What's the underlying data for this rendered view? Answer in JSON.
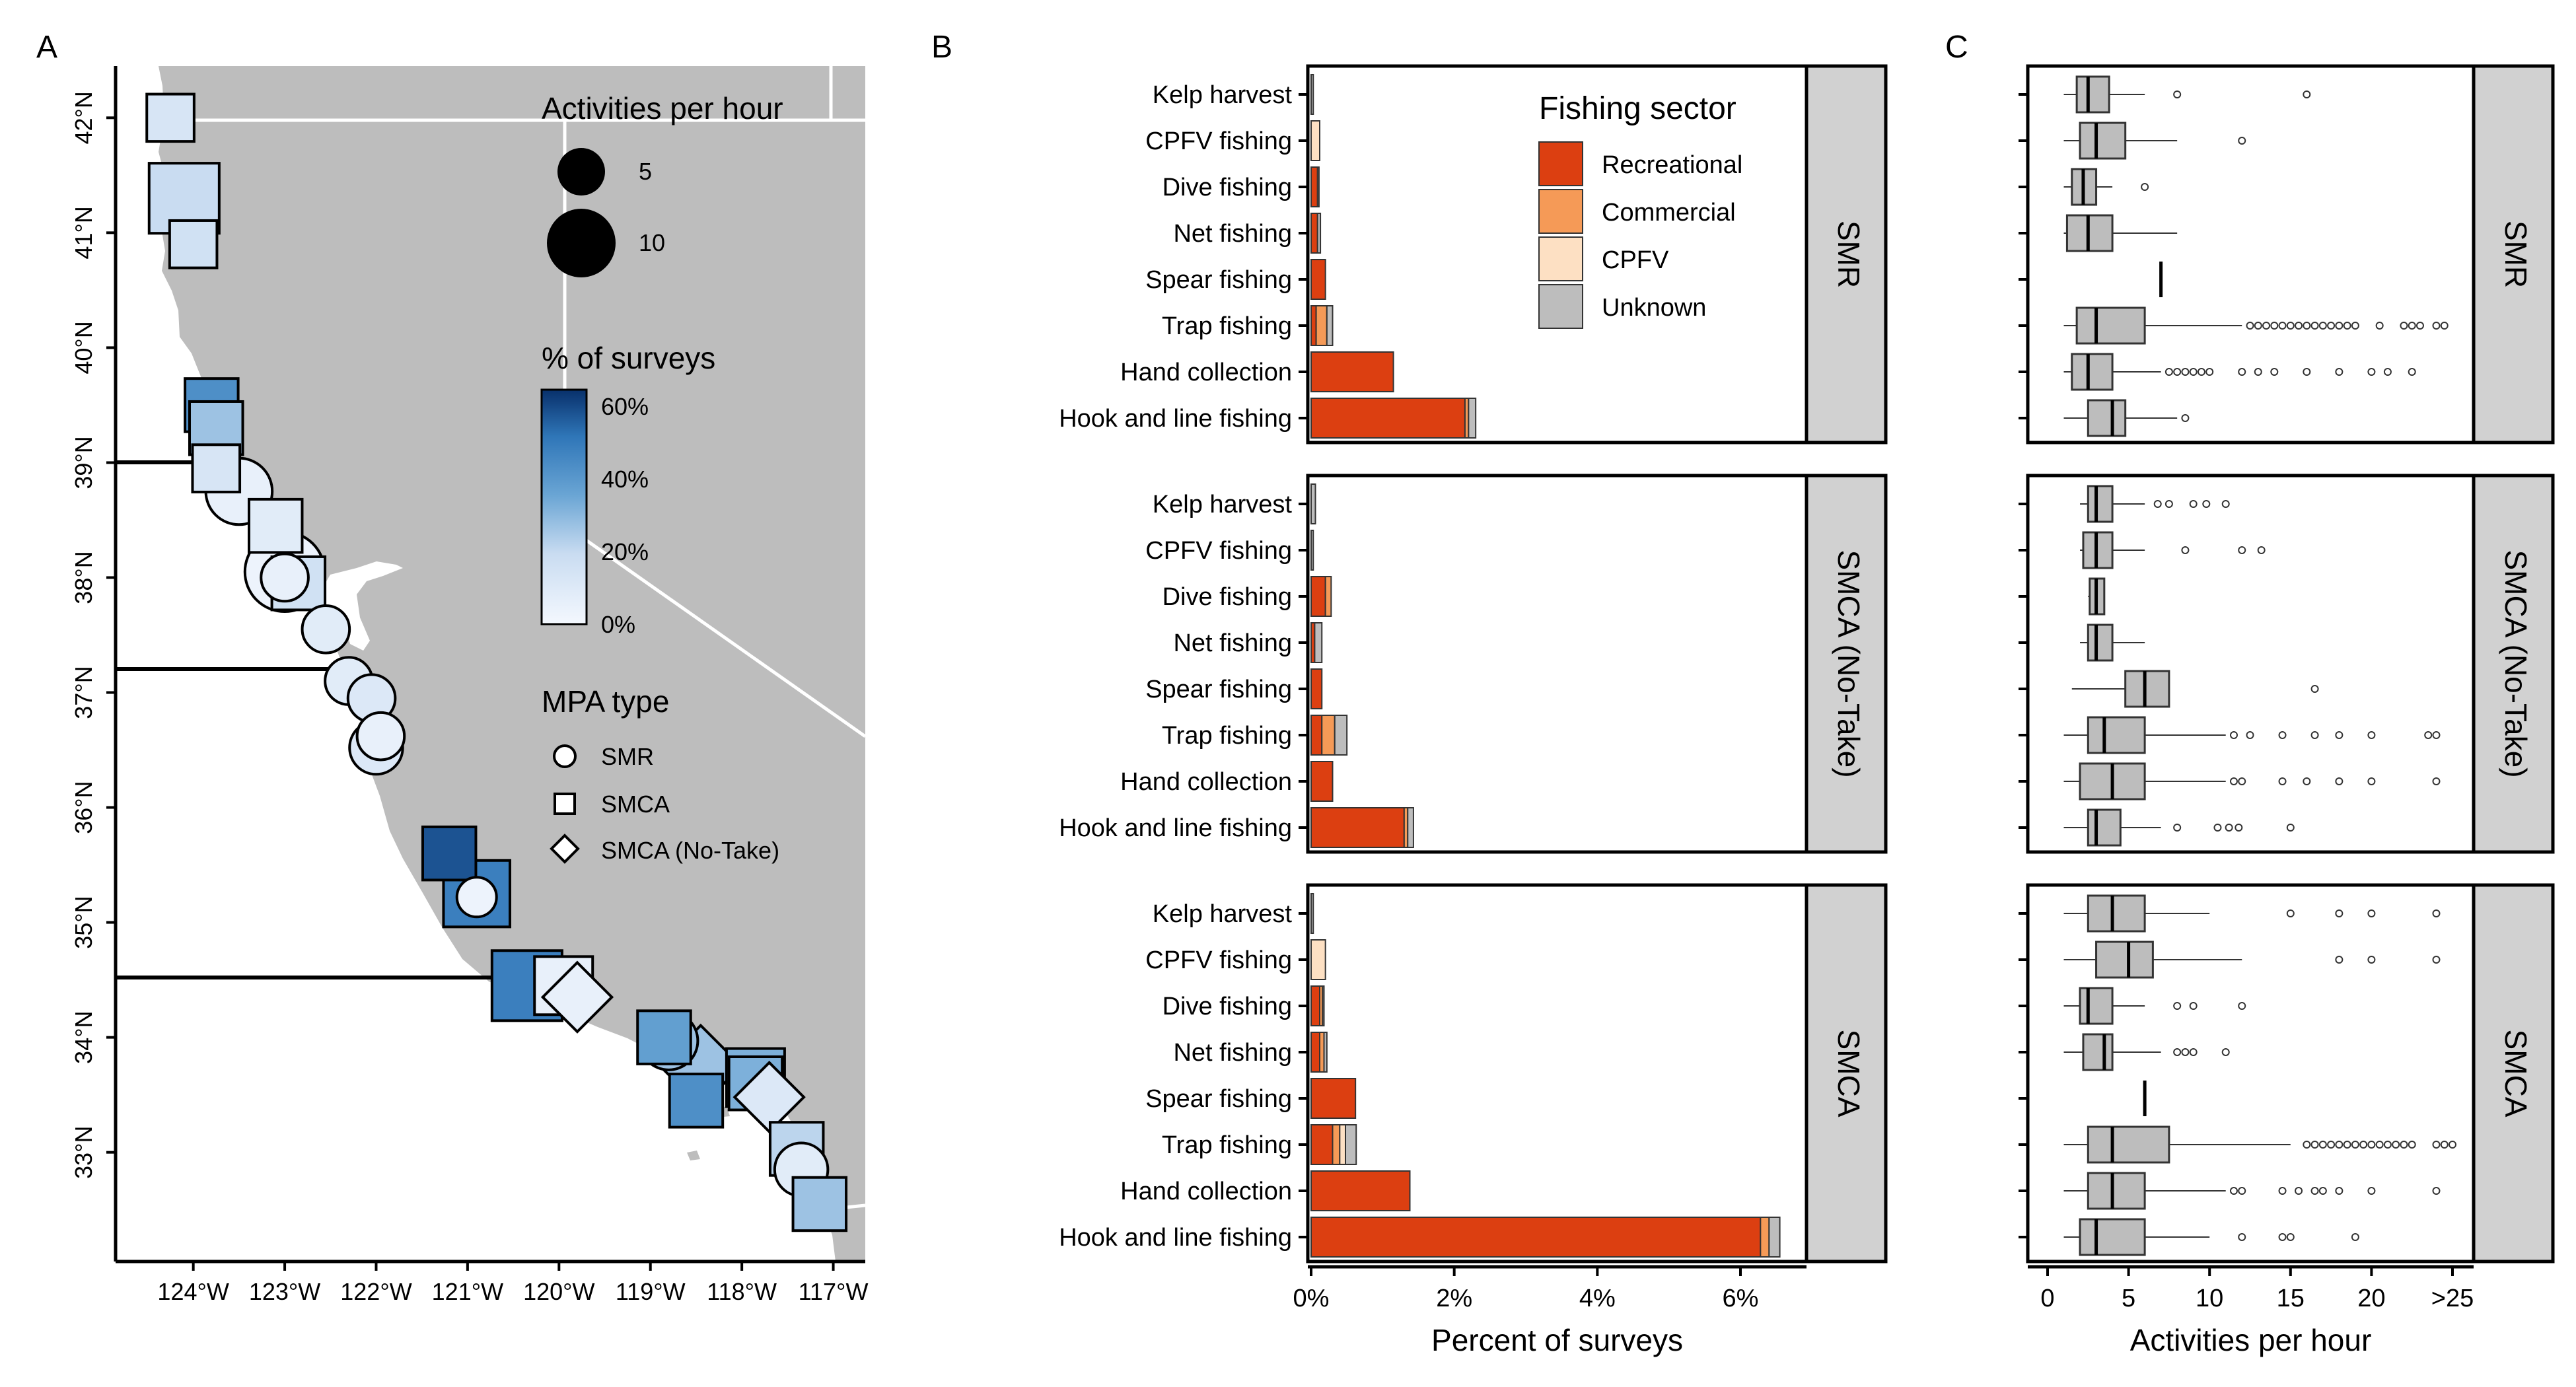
{
  "panel_letters": [
    "A",
    "B",
    "C"
  ],
  "colors": {
    "land": "#bdbdbd",
    "strip": "#d1d1d1",
    "recreational": "#dc3f11",
    "commercial": "#f59a57",
    "cpfv": "#fde0c3",
    "unknown": "#bdbdbd",
    "pct_scale": [
      "#f4f8fe",
      "#c9dcf1",
      "#6aa5d4",
      "#2f76b8",
      "#08306b"
    ]
  },
  "map": {
    "x_ticks": [
      "124°W",
      "123°W",
      "122°W",
      "121°W",
      "120°W",
      "119°W",
      "118°W",
      "117°W"
    ],
    "y_ticks": [
      "33°N",
      "34°N",
      "35°N",
      "36°N",
      "37°N",
      "38°N",
      "39°N",
      "40°N",
      "41°N",
      "42°N"
    ],
    "legend_size_title": "Activities per hour",
    "legend_size_labels": [
      "5",
      "10"
    ],
    "legend_color_title": "% of surveys",
    "legend_color_labels": [
      "60%",
      "40%",
      "20%",
      "0%"
    ],
    "legend_shape_title": "MPA type",
    "legend_shape_labels": [
      "SMR",
      "SMCA",
      "SMCA (No-Take)"
    ],
    "sites": [
      {
        "type": "SMCA",
        "lon": -124.25,
        "lat": 42.0,
        "act": 2,
        "pct": 12
      },
      {
        "type": "SMCA",
        "lon": -124.1,
        "lat": 41.3,
        "act": 7,
        "pct": 18
      },
      {
        "type": "SMCA",
        "lon": -124.0,
        "lat": 40.9,
        "act": 2,
        "pct": 15
      },
      {
        "type": "SMCA",
        "lon": -123.8,
        "lat": 39.5,
        "act": 3,
        "pct": 40
      },
      {
        "type": "SMCA",
        "lon": -123.75,
        "lat": 39.3,
        "act": 3,
        "pct": 25
      },
      {
        "type": "SMCA",
        "lon": -123.75,
        "lat": 38.95,
        "act": 2,
        "pct": 12
      },
      {
        "type": "SMR",
        "lon": -123.5,
        "lat": 38.75,
        "act": 6,
        "pct": 5
      },
      {
        "type": "SMCA",
        "lon": -123.1,
        "lat": 38.45,
        "act": 3,
        "pct": 8
      },
      {
        "type": "SMCA",
        "lon": -122.85,
        "lat": 37.95,
        "act": 3,
        "pct": 15
      },
      {
        "type": "SMR",
        "lon": -123.0,
        "lat": 38.05,
        "act": 10,
        "pct": 3
      },
      {
        "type": "SMR",
        "lon": -123.0,
        "lat": 38.0,
        "act": 2,
        "pct": 5
      },
      {
        "type": "SMR",
        "lon": -122.55,
        "lat": 37.55,
        "act": 2,
        "pct": 8
      },
      {
        "type": "SMR",
        "lon": -122.3,
        "lat": 37.1,
        "act": 2,
        "pct": 8
      },
      {
        "type": "SMR",
        "lon": -122.05,
        "lat": 36.95,
        "act": 2,
        "pct": 10
      },
      {
        "type": "SMR",
        "lon": -121.95,
        "lat": 36.62,
        "act": 2,
        "pct": 5
      },
      {
        "type": "SMR",
        "lon": -122.0,
        "lat": 36.52,
        "act": 3,
        "pct": 10
      },
      {
        "type": "SMCA",
        "lon": -121.2,
        "lat": 35.6,
        "act": 3,
        "pct": 55
      },
      {
        "type": "SMCA",
        "lon": -120.9,
        "lat": 35.25,
        "act": 6,
        "pct": 45
      },
      {
        "type": "SMR",
        "lon": -120.9,
        "lat": 35.22,
        "act": 1,
        "pct": 3
      },
      {
        "type": "SMCA",
        "lon": -120.35,
        "lat": 34.45,
        "act": 7,
        "pct": 45
      },
      {
        "type": "SMCA (No-Take)",
        "lon": -119.8,
        "lat": 34.35,
        "act": 3,
        "pct": 5
      },
      {
        "type": "SMCA",
        "lon": -119.95,
        "lat": 34.45,
        "act": 4,
        "pct": 5
      },
      {
        "type": "SMCA",
        "lon": -118.85,
        "lat": 34.0,
        "act": 3,
        "pct": 35
      },
      {
        "type": "SMR",
        "lon": -118.8,
        "lat": 33.97,
        "act": 4,
        "pct": 25
      },
      {
        "type": "SMCA",
        "lon": -118.5,
        "lat": 33.45,
        "act": 3,
        "pct": 40
      },
      {
        "type": "SMCA (No-Take)",
        "lon": -118.45,
        "lat": 33.75,
        "act": 5,
        "pct": 25
      },
      {
        "type": "SMCA",
        "lon": -117.85,
        "lat": 33.6,
        "act": 3,
        "pct": 30
      },
      {
        "type": "SMCA (No-Take)",
        "lon": -117.7,
        "lat": 33.48,
        "act": 3,
        "pct": 10
      },
      {
        "type": "SMCA",
        "lon": -117.85,
        "lat": 33.65,
        "act": 4,
        "pct": 30
      },
      {
        "type": "SMCA",
        "lon": -117.4,
        "lat": 33.03,
        "act": 3,
        "pct": 20
      },
      {
        "type": "SMR",
        "lon": -117.35,
        "lat": 32.85,
        "act": 3,
        "pct": 8
      },
      {
        "type": "SMCA",
        "lon": -117.15,
        "lat": 32.55,
        "act": 3,
        "pct": 25
      }
    ]
  },
  "chart_data": [
    {
      "type": "bar",
      "title": "",
      "xlabel": "Percent of surveys",
      "ylabel": "",
      "xlim": [
        0,
        6.6
      ],
      "x_ticks": [
        "0%",
        "2%",
        "4%",
        "6%"
      ],
      "x_tick_values": [
        0,
        2,
        4,
        6
      ],
      "legend_title": "Fishing sector",
      "legend_position": "top-right",
      "sectors": [
        "Recreational",
        "Commercial",
        "CPFV",
        "Unknown"
      ],
      "categories": [
        "Kelp harvest",
        "CPFV fishing",
        "Dive fishing",
        "Net fishing",
        "Spear fishing",
        "Trap fishing",
        "Hand collection",
        "Hook and line fishing"
      ],
      "facets": [
        {
          "name": "SMR",
          "series": [
            {
              "name": "Recreational",
              "values": [
                0,
                0,
                0.09,
                0.09,
                0.2,
                0.07,
                1.15,
                2.15
              ]
            },
            {
              "name": "Commercial",
              "values": [
                0,
                0,
                0,
                0,
                0,
                0.15,
                0,
                0.05
              ]
            },
            {
              "name": "CPFV",
              "values": [
                0,
                0.12,
                0,
                0,
                0,
                0,
                0,
                0
              ]
            },
            {
              "name": "Unknown",
              "values": [
                0.03,
                0,
                0.02,
                0.04,
                0,
                0.08,
                0,
                0.1
              ]
            }
          ]
        },
        {
          "name": "SMCA (No-Take)",
          "series": [
            {
              "name": "Recreational",
              "values": [
                0,
                0,
                0.2,
                0.05,
                0.15,
                0.15,
                0.3,
                1.3
              ]
            },
            {
              "name": "Commercial",
              "values": [
                0,
                0,
                0.08,
                0,
                0,
                0.18,
                0,
                0.05
              ]
            },
            {
              "name": "CPFV",
              "values": [
                0,
                0,
                0,
                0,
                0,
                0,
                0,
                0
              ]
            },
            {
              "name": "Unknown",
              "values": [
                0.06,
                0.03,
                0,
                0.1,
                0,
                0.17,
                0,
                0.08
              ]
            }
          ]
        },
        {
          "name": "SMCA",
          "series": [
            {
              "name": "Recreational",
              "values": [
                0,
                0,
                0.12,
                0.12,
                0.62,
                0.3,
                1.38,
                6.28
              ]
            },
            {
              "name": "Commercial",
              "values": [
                0,
                0,
                0.04,
                0.06,
                0,
                0.1,
                0,
                0.12
              ]
            },
            {
              "name": "CPFV",
              "values": [
                0,
                0.2,
                0,
                0,
                0,
                0.08,
                0,
                0
              ]
            },
            {
              "name": "Unknown",
              "values": [
                0.03,
                0,
                0.02,
                0.04,
                0,
                0.15,
                0,
                0.15
              ]
            }
          ]
        }
      ]
    },
    {
      "type": "box",
      "title": "",
      "xlabel": "Activities per hour",
      "ylabel": "",
      "xlim": [
        0,
        26
      ],
      "x_ticks": [
        "0",
        "5",
        "10",
        "15",
        "20",
        ">25"
      ],
      "x_tick_values": [
        0,
        5,
        10,
        15,
        20,
        25
      ],
      "categories": [
        "Kelp harvest",
        "CPFV fishing",
        "Dive fishing",
        "Net fishing",
        "Spear fishing",
        "Trap fishing",
        "Hand collection",
        "Hook and line fishing"
      ],
      "facets": [
        {
          "name": "SMR",
          "boxes": [
            {
              "min": 1,
              "q1": 1.8,
              "median": 2.5,
              "q3": 3.8,
              "max": 6,
              "outliers": [
                8,
                16
              ]
            },
            {
              "min": 1,
              "q1": 2,
              "median": 3,
              "q3": 4.8,
              "max": 8,
              "outliers": [
                12
              ]
            },
            {
              "min": 1,
              "q1": 1.5,
              "median": 2.2,
              "q3": 3,
              "max": 4,
              "outliers": [
                6
              ]
            },
            {
              "min": 1,
              "q1": 1.2,
              "median": 2.5,
              "q3": 4,
              "max": 8,
              "outliers": []
            },
            {
              "min": 7,
              "q1": 7,
              "median": 7,
              "q3": 7,
              "max": 7,
              "outliers": []
            },
            {
              "min": 1,
              "q1": 1.8,
              "median": 3,
              "q3": 6,
              "max": 12,
              "outliers": [
                12.5,
                13,
                13.5,
                14,
                14.5,
                15,
                15.5,
                16,
                16.5,
                17,
                17.5,
                18,
                18.5,
                19,
                20.5,
                22,
                22.5,
                23,
                24,
                24.5
              ]
            },
            {
              "min": 1,
              "q1": 1.5,
              "median": 2.5,
              "q3": 4,
              "max": 7,
              "outliers": [
                7.5,
                8,
                8.5,
                9,
                9.5,
                10,
                12,
                13,
                14,
                16,
                18,
                20,
                21,
                22.5
              ]
            },
            {
              "min": 1,
              "q1": 2.5,
              "median": 4,
              "q3": 4.8,
              "max": 8,
              "outliers": [
                8.5
              ]
            }
          ]
        },
        {
          "name": "SMCA (No-Take)",
          "boxes": [
            {
              "min": 2,
              "q1": 2.5,
              "median": 3,
              "q3": 4,
              "max": 6,
              "outliers": [
                6.8,
                7.5,
                9,
                9.8,
                11
              ]
            },
            {
              "min": 2,
              "q1": 2.2,
              "median": 3,
              "q3": 4,
              "max": 6,
              "outliers": [
                8.5,
                12,
                13.2
              ]
            },
            {
              "min": 2.5,
              "q1": 2.6,
              "median": 3,
              "q3": 3.5,
              "max": 3.5,
              "outliers": []
            },
            {
              "min": 2,
              "q1": 2.5,
              "median": 3,
              "q3": 4,
              "max": 6,
              "outliers": []
            },
            {
              "min": 1.5,
              "q1": 4.8,
              "median": 6,
              "q3": 7.5,
              "max": 7.5,
              "outliers": [
                16.5
              ]
            },
            {
              "min": 1,
              "q1": 2.5,
              "median": 3.5,
              "q3": 6,
              "max": 11,
              "outliers": [
                11.5,
                12.5,
                14.5,
                16.5,
                18,
                20,
                23.5,
                24
              ]
            },
            {
              "min": 1,
              "q1": 2,
              "median": 4,
              "q3": 6,
              "max": 11,
              "outliers": [
                11.5,
                12,
                14.5,
                16,
                18,
                20,
                24
              ]
            },
            {
              "min": 1,
              "q1": 2.5,
              "median": 3,
              "q3": 4.5,
              "max": 7,
              "outliers": [
                8,
                10.5,
                11.2,
                11.8,
                15
              ]
            }
          ]
        },
        {
          "name": "SMCA",
          "boxes": [
            {
              "min": 1,
              "q1": 2.5,
              "median": 4,
              "q3": 6,
              "max": 10,
              "outliers": [
                15,
                18,
                20,
                24
              ]
            },
            {
              "min": 1,
              "q1": 3,
              "median": 5,
              "q3": 6.5,
              "max": 12,
              "outliers": [
                18,
                20,
                24
              ]
            },
            {
              "min": 1,
              "q1": 2,
              "median": 2.5,
              "q3": 4,
              "max": 6,
              "outliers": [
                8,
                9,
                12
              ]
            },
            {
              "min": 1,
              "q1": 2.2,
              "median": 3.5,
              "q3": 4,
              "max": 7,
              "outliers": [
                8,
                8.5,
                9,
                11
              ]
            },
            {
              "min": 6,
              "q1": 6,
              "median": 6,
              "q3": 6,
              "max": 6,
              "outliers": []
            },
            {
              "min": 1,
              "q1": 2.5,
              "median": 4,
              "q3": 7.5,
              "max": 15,
              "outliers": [
                16,
                16.5,
                17,
                17.5,
                18,
                18.5,
                19,
                19.5,
                20,
                20.5,
                21,
                21.5,
                22,
                22.5,
                24,
                24.5,
                25
              ]
            },
            {
              "min": 1,
              "q1": 2.5,
              "median": 4,
              "q3": 6,
              "max": 11,
              "outliers": [
                11.5,
                12,
                14.5,
                15.5,
                16.5,
                17,
                18,
                20,
                24
              ]
            },
            {
              "min": 1,
              "q1": 2,
              "median": 3,
              "q3": 6,
              "max": 10,
              "outliers": [
                12,
                14.5,
                15,
                19
              ]
            }
          ]
        }
      ]
    }
  ]
}
